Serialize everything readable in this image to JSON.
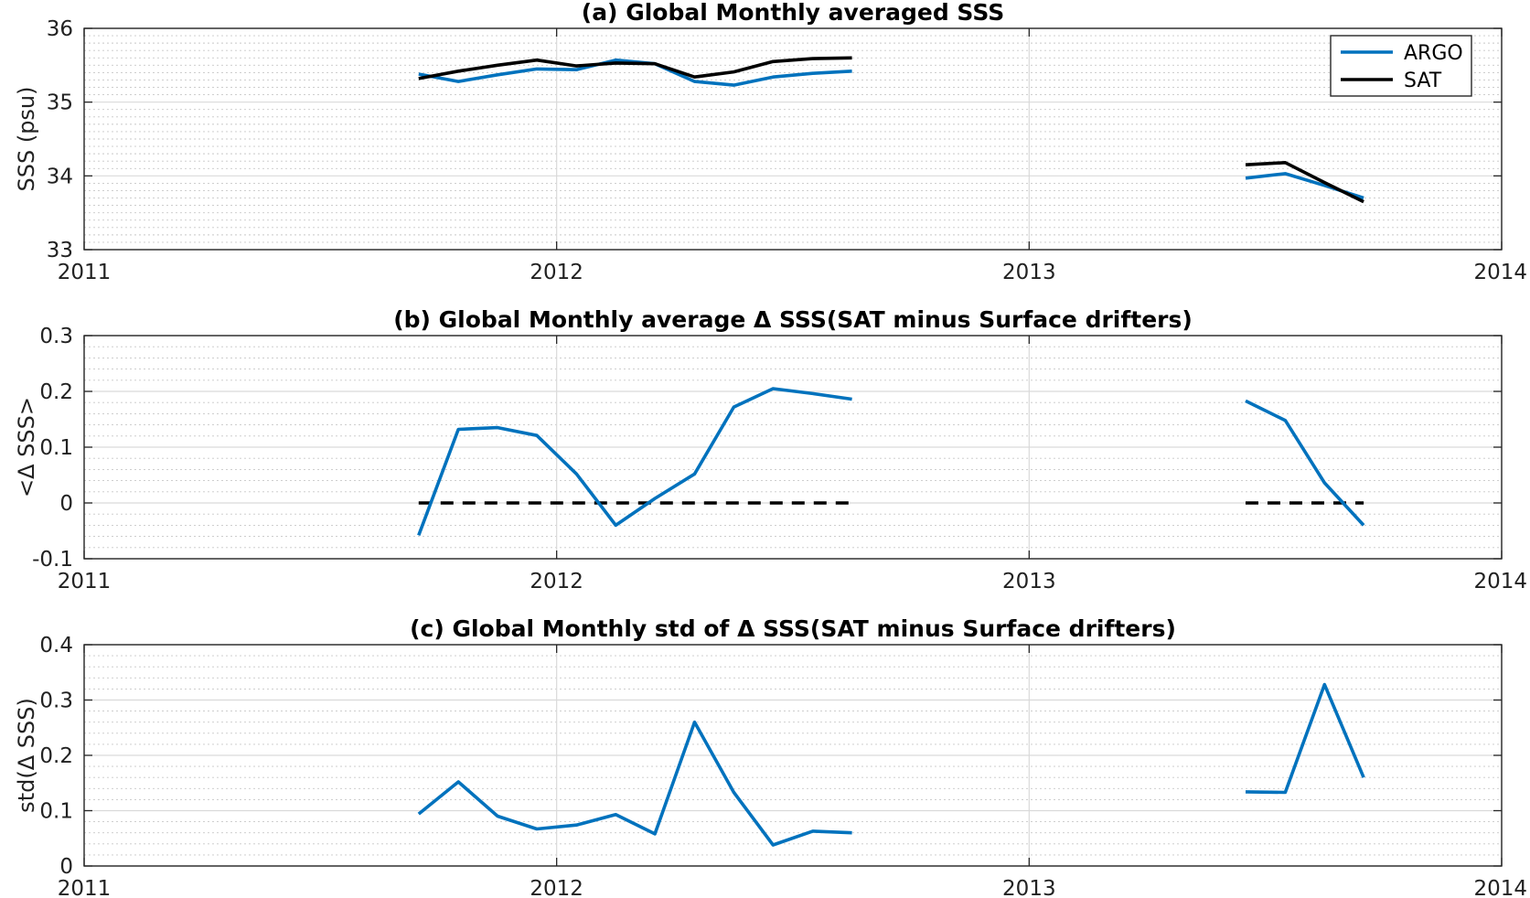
{
  "colors": {
    "argo": "#0072bd",
    "sat": "#000000",
    "zero": "#000000"
  },
  "chart_data": [
    {
      "type": "line",
      "title": "(a) Global Monthly averaged SSS",
      "ylabel": "SSS (psu)",
      "xlim": [
        2011,
        2014
      ],
      "ylim": [
        33,
        36
      ],
      "xticks": [
        "2011",
        "2012",
        "2013",
        "2014"
      ],
      "yticks": [
        "33",
        "34",
        "35",
        "36"
      ],
      "grid": true,
      "minor_grid": true,
      "legend": {
        "placement": "top-right",
        "entries": [
          "ARGO",
          "SAT"
        ]
      },
      "series": [
        {
          "name": "ARGO",
          "segments": [
            {
              "x": [
                2011.708,
                2011.792,
                2011.875,
                2011.958,
                2012.042,
                2012.125,
                2012.208,
                2012.292,
                2012.375,
                2012.458,
                2012.542,
                2012.625
              ],
              "y": [
                35.38,
                35.28,
                35.37,
                35.45,
                35.44,
                35.57,
                35.52,
                35.28,
                35.23,
                35.34,
                35.39,
                35.42
              ]
            },
            {
              "x": [
                2013.458,
                2013.542,
                2013.625,
                2013.708
              ],
              "y": [
                33.97,
                34.03,
                33.87,
                33.7
              ]
            }
          ]
        },
        {
          "name": "SAT",
          "segments": [
            {
              "x": [
                2011.708,
                2011.792,
                2011.875,
                2011.958,
                2012.042,
                2012.125,
                2012.208,
                2012.292,
                2012.375,
                2012.458,
                2012.542,
                2012.625
              ],
              "y": [
                35.32,
                35.42,
                35.5,
                35.57,
                35.49,
                35.53,
                35.52,
                35.34,
                35.41,
                35.55,
                35.59,
                35.6
              ]
            },
            {
              "x": [
                2013.458,
                2013.542,
                2013.625,
                2013.708
              ],
              "y": [
                34.15,
                34.18,
                33.91,
                33.65
              ]
            }
          ]
        }
      ]
    },
    {
      "type": "line",
      "title": "(b) Global Monthly average Δ SSS(SAT minus Surface drifters)",
      "ylabel": "<Δ SSS>",
      "xlim": [
        2011,
        2014
      ],
      "ylim": [
        -0.1,
        0.3
      ],
      "xticks": [
        "2011",
        "2012",
        "2013",
        "2014"
      ],
      "yticks": [
        "-0.1",
        "0",
        "0.1",
        "0.2",
        "0.3"
      ],
      "grid": true,
      "minor_grid": true,
      "series": [
        {
          "segments": [
            {
              "x": [
                2011.708,
                2011.792,
                2011.875,
                2011.958,
                2012.042,
                2012.125,
                2012.208,
                2012.292,
                2012.375,
                2012.458,
                2012.542,
                2012.625
              ],
              "y": [
                -0.058,
                0.132,
                0.135,
                0.121,
                0.052,
                -0.04,
                0.008,
                0.052,
                0.172,
                0.205,
                0.196,
                0.186
              ]
            },
            {
              "x": [
                2013.458,
                2013.542,
                2013.625,
                2013.708
              ],
              "y": [
                0.183,
                0.148,
                0.036,
                -0.04
              ]
            }
          ]
        }
      ],
      "reference_lines": [
        {
          "y": 0,
          "x": [
            2011.708,
            2012.625
          ]
        },
        {
          "y": 0,
          "x": [
            2013.458,
            2013.708
          ]
        }
      ]
    },
    {
      "type": "line",
      "title": "(c) Global Monthly std of Δ SSS(SAT minus Surface drifters)",
      "ylabel": "std(Δ SSS)",
      "xlim": [
        2011,
        2014
      ],
      "ylim": [
        0,
        0.4
      ],
      "xticks": [
        "2011",
        "2012",
        "2013",
        "2014"
      ],
      "yticks": [
        "0",
        "0.1",
        "0.2",
        "0.3",
        "0.4"
      ],
      "grid": true,
      "minor_grid": true,
      "series": [
        {
          "segments": [
            {
              "x": [
                2011.708,
                2011.792,
                2011.875,
                2011.958,
                2012.042,
                2012.125,
                2012.208,
                2012.292,
                2012.375,
                2012.458,
                2012.542,
                2012.625
              ],
              "y": [
                0.094,
                0.152,
                0.09,
                0.067,
                0.074,
                0.093,
                0.058,
                0.26,
                0.133,
                0.038,
                0.063,
                0.06
              ]
            },
            {
              "x": [
                2013.458,
                2013.542,
                2013.625,
                2013.708
              ],
              "y": [
                0.134,
                0.133,
                0.328,
                0.16
              ]
            }
          ]
        }
      ]
    }
  ]
}
